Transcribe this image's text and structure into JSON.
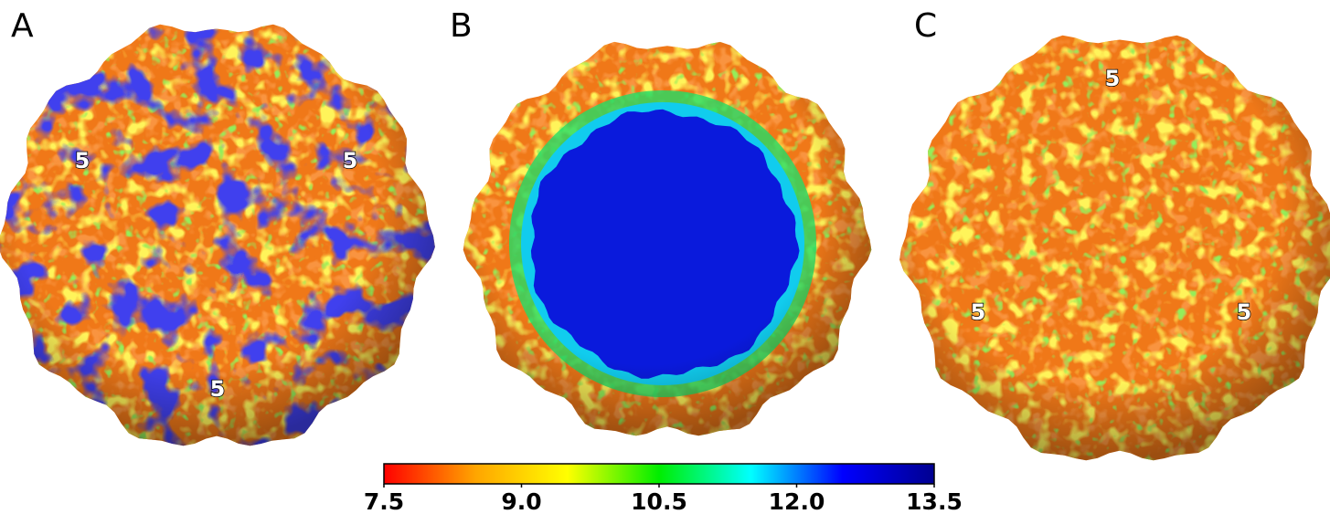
{
  "panels": [
    {
      "label": "A",
      "markers": [
        "5",
        "5",
        "5"
      ]
    },
    {
      "label": "B",
      "markers": []
    },
    {
      "label": "C",
      "markers": [
        "5",
        "5",
        "5"
      ]
    }
  ],
  "colorbar": {
    "lim": [
      7.5,
      13.5
    ],
    "ticks": [
      7.5,
      {
        "value": 9,
        "label": "9.0"
      },
      10.5,
      {
        "value": 12,
        "label": "12.0"
      },
      13.5
    ],
    "colors": [
      "#ff0000",
      "#ffa500",
      "#ffff00",
      "#00ee00",
      "#00ffff",
      "#0000ff",
      "#000090"
    ]
  }
}
